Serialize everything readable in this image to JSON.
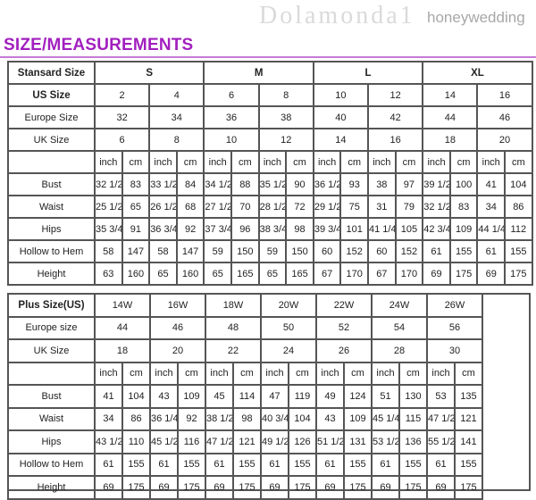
{
  "title": "SIZE/MEASUREMENTS",
  "watermark": "honeywedding",
  "standard": {
    "header_label": "Stansard Size",
    "groups": [
      "S",
      "M",
      "L",
      "XL"
    ],
    "us_label": "US Size",
    "us": [
      "2",
      "4",
      "6",
      "8",
      "10",
      "12",
      "14",
      "16"
    ],
    "europe_label": "Europe Size",
    "europe": [
      "32",
      "34",
      "36",
      "38",
      "40",
      "42",
      "44",
      "46"
    ],
    "uk_label": "UK Size",
    "uk": [
      "6",
      "8",
      "10",
      "12",
      "14",
      "16",
      "18",
      "20"
    ],
    "unit_inch": "inch",
    "unit_cm": "cm",
    "rows": [
      {
        "label": "Bust",
        "values": [
          "32 1/2",
          "83",
          "33 1/2",
          "84",
          "34 1/2",
          "88",
          "35 1/2",
          "90",
          "36 1/2",
          "93",
          "38",
          "97",
          "39 1/2",
          "100",
          "41",
          "104"
        ]
      },
      {
        "label": "Waist",
        "values": [
          "25 1/2",
          "65",
          "26 1/2",
          "68",
          "27 1/2",
          "70",
          "28 1/2",
          "72",
          "29 1/2",
          "75",
          "31",
          "79",
          "32 1/2",
          "83",
          "34",
          "86"
        ]
      },
      {
        "label": "Hips",
        "values": [
          "35 3/4",
          "91",
          "36 3/4",
          "92",
          "37 3/4",
          "96",
          "38 3/4",
          "98",
          "39 3/4",
          "101",
          "41 1/4",
          "105",
          "42 3/4",
          "109",
          "44 1/4",
          "112"
        ]
      },
      {
        "label": "Hollow to Hem",
        "values": [
          "58",
          "147",
          "58",
          "147",
          "59",
          "150",
          "59",
          "150",
          "60",
          "152",
          "60",
          "152",
          "61",
          "155",
          "61",
          "155"
        ]
      },
      {
        "label": "Height",
        "values": [
          "63",
          "160",
          "65",
          "160",
          "65",
          "165",
          "65",
          "165",
          "67",
          "170",
          "67",
          "170",
          "69",
          "175",
          "69",
          "175"
        ]
      }
    ]
  },
  "plus": {
    "header_label": "Plus Size(US)",
    "us": [
      "14W",
      "16W",
      "18W",
      "20W",
      "22W",
      "24W",
      "26W"
    ],
    "europe_label": "Europe size",
    "europe": [
      "44",
      "46",
      "48",
      "50",
      "52",
      "54",
      "56"
    ],
    "uk_label": "UK Size",
    "uk": [
      "18",
      "20",
      "22",
      "24",
      "26",
      "28",
      "30"
    ],
    "unit_inch": "inch",
    "unit_cm": "cm",
    "rows": [
      {
        "label": "Bust",
        "values": [
          "41",
          "104",
          "43",
          "109",
          "45",
          "114",
          "47",
          "119",
          "49",
          "124",
          "51",
          "130",
          "53",
          "135"
        ]
      },
      {
        "label": "Waist",
        "values": [
          "34",
          "86",
          "36 1/4",
          "92",
          "38 1/2",
          "98",
          "40 3/4",
          "104",
          "43",
          "109",
          "45 1/4",
          "115",
          "47 1/2",
          "121"
        ]
      },
      {
        "label": "Hips",
        "values": [
          "43 1/2",
          "110",
          "45 1/2",
          "116",
          "47 1/2",
          "121",
          "49 1/2",
          "126",
          "51 1/2",
          "131",
          "53 1/2",
          "136",
          "55 1/2",
          "141"
        ]
      },
      {
        "label": "Hollow to Hem",
        "values": [
          "61",
          "155",
          "61",
          "155",
          "61",
          "155",
          "61",
          "155",
          "61",
          "155",
          "61",
          "155",
          "61",
          "155"
        ]
      },
      {
        "label": "Height",
        "values": [
          "69",
          "175",
          "69",
          "175",
          "69",
          "175",
          "69",
          "175",
          "69",
          "175",
          "69",
          "175",
          "69",
          "175"
        ]
      }
    ]
  }
}
